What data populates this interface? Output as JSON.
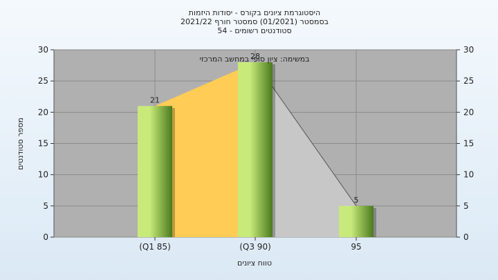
{
  "chart_data": {
    "type": "bar",
    "title_lines": [
      "היסטוגרמת ציונים בקורס - יסודות היזמות",
      "בסמסטר  (01/2021)  סמסטר חורף 2021/22",
      "סטודנטים רשומים - 54"
    ],
    "annotation": "במשימה: ציון סופי במחשב המרכזי",
    "xlabel": "טווח ציונים",
    "ylabel": "מספר סטודנטים",
    "categories": [
      "(Q1 85)",
      "(Q3 90)",
      "95"
    ],
    "values": [
      21,
      28,
      5
    ],
    "ylim": [
      0,
      30
    ],
    "yticks": [
      0,
      5,
      10,
      15,
      20,
      25,
      30
    ],
    "grid": true,
    "colors": {
      "plot_bg": "#b0b0b0",
      "bar_light": "#c8ea7a",
      "bar_dark": "#4a7a1e",
      "area_left": "#ffcc55",
      "area_right": "#c7c7c7"
    }
  }
}
